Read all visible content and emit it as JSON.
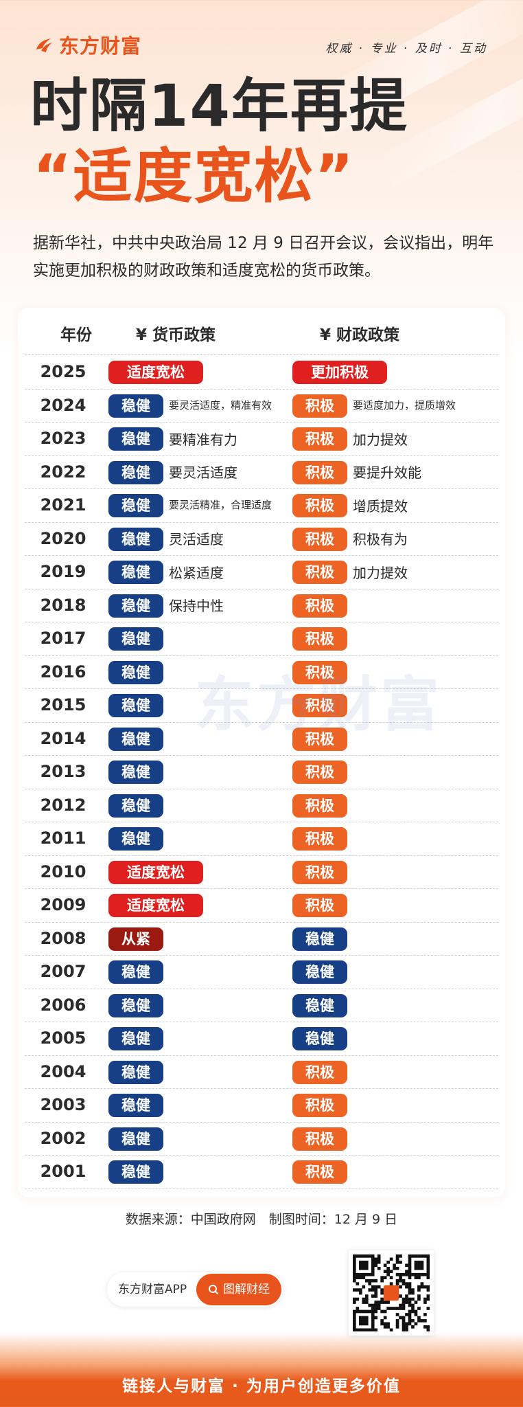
{
  "brand": {
    "name": "东方财富",
    "slogan": "权威 · 专业 · 及时 · 互动"
  },
  "title": {
    "line1": "时隔14年再提",
    "line2": "“适度宽松”"
  },
  "intro": "据新华社，中共中央政治局 12 月 9 日召开会议，会议指出，明年实施更加积极的财政政策和适度宽松的货币政策。",
  "table": {
    "headers": {
      "year": "年份",
      "monetary": "¥ 货币政策",
      "fiscal": "¥ 财政政策"
    },
    "rows": [
      {
        "year": "2025",
        "monetary": "适度宽松",
        "m_style": "red",
        "m_note": "",
        "fiscal": "更加积极",
        "f_style": "red",
        "f_note": ""
      },
      {
        "year": "2024",
        "monetary": "稳健",
        "m_style": "blue",
        "m_note": "要灵活适度，精准有效",
        "fiscal": "积极",
        "f_style": "orange",
        "f_note": "要适度加力，提质增效"
      },
      {
        "year": "2023",
        "monetary": "稳健",
        "m_style": "blue",
        "m_note": "要精准有力",
        "fiscal": "积极",
        "f_style": "orange",
        "f_note": "加力提效"
      },
      {
        "year": "2022",
        "monetary": "稳健",
        "m_style": "blue",
        "m_note": "要灵活适度",
        "fiscal": "积极",
        "f_style": "orange",
        "f_note": "要提升效能"
      },
      {
        "year": "2021",
        "monetary": "稳健",
        "m_style": "blue",
        "m_note": "要灵活精准，合理适度",
        "fiscal": "积极",
        "f_style": "orange",
        "f_note": "增质提效"
      },
      {
        "year": "2020",
        "monetary": "稳健",
        "m_style": "blue",
        "m_note": "灵活适度",
        "fiscal": "积极",
        "f_style": "orange",
        "f_note": "积极有为"
      },
      {
        "year": "2019",
        "monetary": "稳健",
        "m_style": "blue",
        "m_note": "松紧适度",
        "fiscal": "积极",
        "f_style": "orange",
        "f_note": "加力提效"
      },
      {
        "year": "2018",
        "monetary": "稳健",
        "m_style": "blue",
        "m_note": "保持中性",
        "fiscal": "积极",
        "f_style": "orange",
        "f_note": ""
      },
      {
        "year": "2017",
        "monetary": "稳健",
        "m_style": "blue",
        "m_note": "",
        "fiscal": "积极",
        "f_style": "orange",
        "f_note": ""
      },
      {
        "year": "2016",
        "monetary": "稳健",
        "m_style": "blue",
        "m_note": "",
        "fiscal": "积极",
        "f_style": "orange",
        "f_note": ""
      },
      {
        "year": "2015",
        "monetary": "稳健",
        "m_style": "blue",
        "m_note": "",
        "fiscal": "积极",
        "f_style": "orange",
        "f_note": ""
      },
      {
        "year": "2014",
        "monetary": "稳健",
        "m_style": "blue",
        "m_note": "",
        "fiscal": "积极",
        "f_style": "orange",
        "f_note": ""
      },
      {
        "year": "2013",
        "monetary": "稳健",
        "m_style": "blue",
        "m_note": "",
        "fiscal": "积极",
        "f_style": "orange",
        "f_note": ""
      },
      {
        "year": "2012",
        "monetary": "稳健",
        "m_style": "blue",
        "m_note": "",
        "fiscal": "积极",
        "f_style": "orange",
        "f_note": ""
      },
      {
        "year": "2011",
        "monetary": "稳健",
        "m_style": "blue",
        "m_note": "",
        "fiscal": "积极",
        "f_style": "orange",
        "f_note": ""
      },
      {
        "year": "2010",
        "monetary": "适度宽松",
        "m_style": "red",
        "m_note": "",
        "fiscal": "积极",
        "f_style": "orange",
        "f_note": ""
      },
      {
        "year": "2009",
        "monetary": "适度宽松",
        "m_style": "red",
        "m_note": "",
        "fiscal": "积极",
        "f_style": "orange",
        "f_note": ""
      },
      {
        "year": "2008",
        "monetary": "从紧",
        "m_style": "darkred",
        "m_note": "",
        "fiscal": "稳健",
        "f_style": "blue",
        "f_note": ""
      },
      {
        "year": "2007",
        "monetary": "稳健",
        "m_style": "blue",
        "m_note": "",
        "fiscal": "稳健",
        "f_style": "blue",
        "f_note": ""
      },
      {
        "year": "2006",
        "monetary": "稳健",
        "m_style": "blue",
        "m_note": "",
        "fiscal": "稳健",
        "f_style": "blue",
        "f_note": ""
      },
      {
        "year": "2005",
        "monetary": "稳健",
        "m_style": "blue",
        "m_note": "",
        "fiscal": "稳健",
        "f_style": "blue",
        "f_note": ""
      },
      {
        "year": "2004",
        "monetary": "稳健",
        "m_style": "blue",
        "m_note": "",
        "fiscal": "积极",
        "f_style": "orange",
        "f_note": ""
      },
      {
        "year": "2003",
        "monetary": "稳健",
        "m_style": "blue",
        "m_note": "",
        "fiscal": "积极",
        "f_style": "orange",
        "f_note": ""
      },
      {
        "year": "2002",
        "monetary": "稳健",
        "m_style": "blue",
        "m_note": "",
        "fiscal": "积极",
        "f_style": "orange",
        "f_note": ""
      },
      {
        "year": "2001",
        "monetary": "稳健",
        "m_style": "blue",
        "m_note": "",
        "fiscal": "积极",
        "f_style": "orange",
        "f_note": ""
      }
    ]
  },
  "watermark": "东方财富",
  "source": "数据来源：中国政府网　制图时间：12 月 9 日",
  "app_pill": {
    "label": "东方财富APP",
    "button": "图解财经",
    "button_icon": "search-icon"
  },
  "footer": "链接人与财富 · 为用户创造更多价值",
  "colors": {
    "brand_orange": "#e8541c",
    "badge_blue": "#173f86",
    "badge_orange": "#ec6324",
    "badge_red": "#e01f1f",
    "badge_darkred": "#9a1a12"
  }
}
